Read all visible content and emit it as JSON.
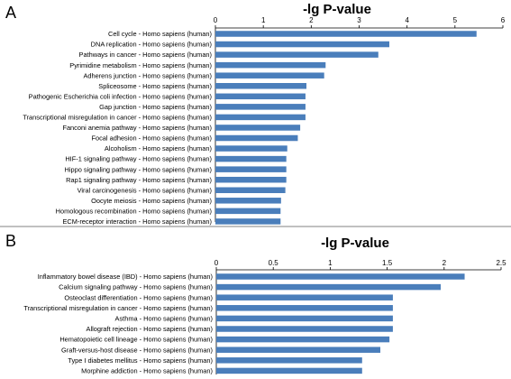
{
  "figure": {
    "separator": true,
    "bar_color": "#4a7ebb"
  },
  "chart_data": [
    {
      "type": "bar",
      "orientation": "horizontal",
      "panel_label": "A",
      "title": "-lg P-value",
      "xlim": [
        0,
        6
      ],
      "xticks": [
        "0",
        "1",
        "2",
        "3",
        "4",
        "5",
        "6"
      ],
      "axis_position": "top",
      "categories": [
        "Cell cycle - Homo sapiens (human)",
        "DNA replication - Homo sapiens (human)",
        "Pathways in cancer - Homo sapiens (human)",
        "Pyrimidine metabolism - Homo sapiens (human)",
        "Adherens junction - Homo sapiens (human)",
        "Spliceosome - Homo sapiens (human)",
        "Pathogenic Escherichia coli infection - Homo sapiens (human)",
        "Gap junction - Homo sapiens (human)",
        "Transcriptional misregulation in cancer - Homo sapiens (human)",
        "Fanconi anemia pathway - Homo sapiens (human)",
        "Focal adhesion - Homo sapiens (human)",
        "Alcoholism - Homo sapiens (human)",
        "HIF-1 signaling pathway - Homo sapiens (human)",
        "Hippo signaling pathway - Homo sapiens (human)",
        "Rap1 signaling pathway - Homo sapiens (human)",
        "Viral carcinogenesis - Homo sapiens (human)",
        "Oocyte meiosis - Homo sapiens (human)",
        "Homologous recombination - Homo sapiens (human)",
        "ECM-receptor interaction - Homo sapiens (human)"
      ],
      "values": [
        5.45,
        3.63,
        3.4,
        2.3,
        2.27,
        1.9,
        1.88,
        1.88,
        1.88,
        1.77,
        1.72,
        1.5,
        1.48,
        1.48,
        1.48,
        1.46,
        1.37,
        1.36,
        1.36
      ]
    },
    {
      "type": "bar",
      "orientation": "horizontal",
      "panel_label": "B",
      "title": "-lg P-value",
      "xlim": [
        0,
        2.5
      ],
      "xticks": [
        "0",
        "0.5",
        "1",
        "1.5",
        "2",
        "2.5"
      ],
      "axis_position": "top",
      "categories": [
        "Inflammatory bowel disease (IBD) - Homo sapiens (human)",
        "Calcium signaling pathway - Homo sapiens (human)",
        "Osteoclast differentiation - Homo sapiens (human)",
        "Transcriptional misregulation in cancer - Homo sapiens (human)",
        "Asthma - Homo sapiens (human)",
        "Allograft rejection - Homo sapiens (human)",
        "Hematopoietic cell lineage - Homo sapiens (human)",
        "Graft-versus-host disease - Homo sapiens (human)",
        "Type I diabetes mellitus - Homo sapiens (human)",
        "Morphine addiction - Homo sapiens (human)"
      ],
      "values": [
        2.18,
        1.97,
        1.55,
        1.55,
        1.55,
        1.55,
        1.52,
        1.44,
        1.28,
        1.28
      ]
    }
  ]
}
